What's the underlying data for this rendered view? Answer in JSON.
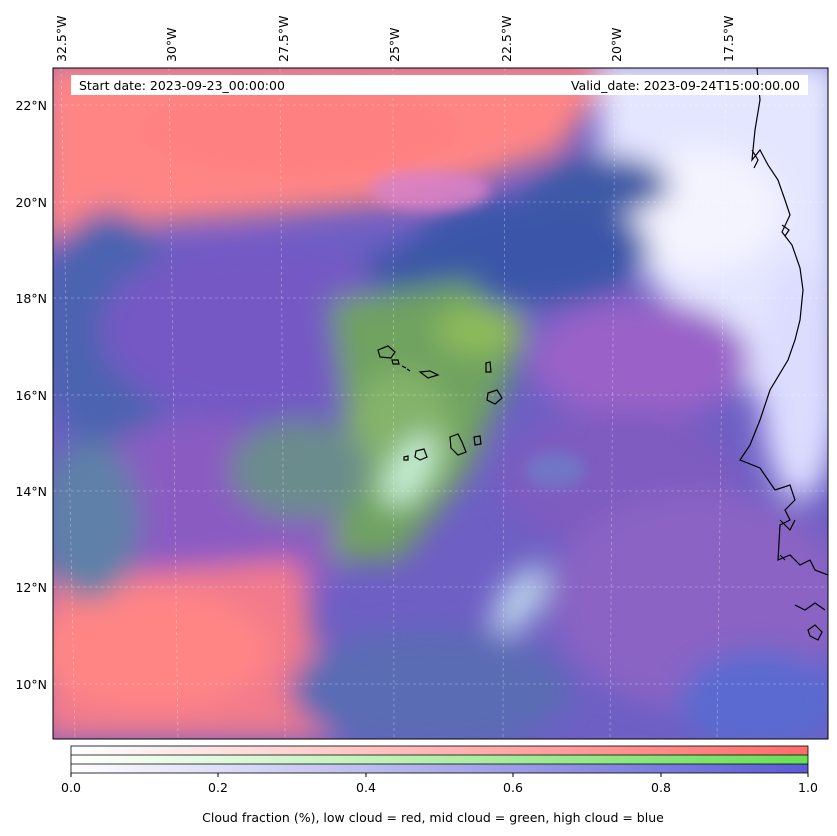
{
  "map": {
    "start_date": "Start date: 2023-09-23_00:00:00",
    "valid_date": "Valid_date: 2023-09-24T15:00:00.00",
    "lon_labels": [
      "32.5°W",
      "30°W",
      "27.5°W",
      "25°W",
      "22.5°W",
      "20°W",
      "17.5°W"
    ],
    "lat_labels": [
      "22°N",
      "20°N",
      "18°N",
      "16°N",
      "14°N",
      "12°N",
      "10°N"
    ],
    "gridlines": true,
    "coastlines": true
  },
  "colorbar": {
    "ticks": [
      "0.0",
      "0.2",
      "0.4",
      "0.6",
      "0.8",
      "1.0"
    ],
    "label": "Cloud fraction (%), low cloud = red, mid cloud = green, high cloud = blue",
    "channels": [
      {
        "name": "low cloud",
        "color": "#ff6b6b"
      },
      {
        "name": "mid cloud",
        "color": "#66e055"
      },
      {
        "name": "high cloud",
        "color": "#5a5ad8"
      }
    ]
  },
  "colors": {
    "low": "#ff7f7f",
    "mid": "#7ed96a",
    "high": "#4a4fc0",
    "clear": "#eef0ff"
  }
}
